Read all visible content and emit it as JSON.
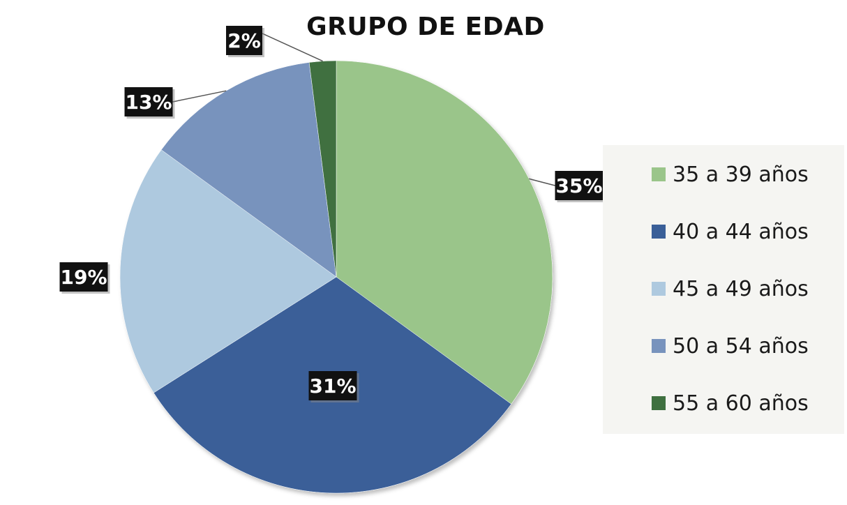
{
  "chart_data": {
    "type": "pie",
    "title": "GRUPO DE EDAD",
    "categories": [
      "35 a 39 años",
      "40 a 44 años",
      "45 a 49 años",
      "50 a 54 años",
      "55 a 60 años"
    ],
    "values": [
      35,
      31,
      19,
      13,
      2
    ],
    "data_labels": [
      "35%",
      "31%",
      "19%",
      "13%",
      "2%"
    ],
    "colors": [
      "#9ac58a",
      "#3a5f98",
      "#aec9df",
      "#7893bd",
      "#3f7040"
    ],
    "legend_position": "right"
  }
}
